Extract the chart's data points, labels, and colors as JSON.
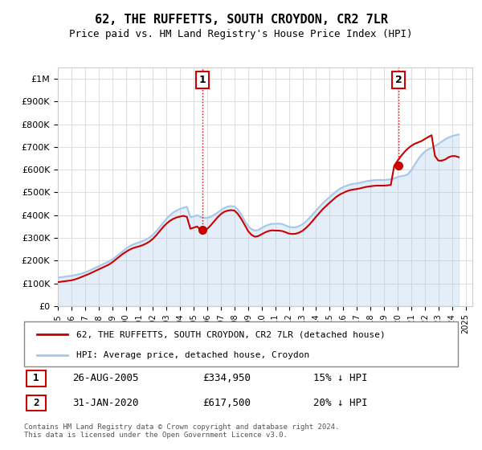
{
  "title": "62, THE RUFFETTS, SOUTH CROYDON, CR2 7LR",
  "subtitle": "Price paid vs. HM Land Registry's House Price Index (HPI)",
  "ylabel_ticks": [
    "£0",
    "£100K",
    "£200K",
    "£300K",
    "£400K",
    "£500K",
    "£600K",
    "£700K",
    "£800K",
    "£900K",
    "£1M"
  ],
  "ytick_values": [
    0,
    100000,
    200000,
    300000,
    400000,
    500000,
    600000,
    700000,
    800000,
    900000,
    1000000
  ],
  "ylim": [
    0,
    1050000
  ],
  "xlim_start": 1995.0,
  "xlim_end": 2025.5,
  "xtick_years": [
    1995,
    1996,
    1997,
    1998,
    1999,
    2000,
    2001,
    2002,
    2003,
    2004,
    2005,
    2006,
    2007,
    2008,
    2009,
    2010,
    2011,
    2012,
    2013,
    2014,
    2015,
    2016,
    2017,
    2018,
    2019,
    2020,
    2021,
    2022,
    2023,
    2024,
    2025
  ],
  "hpi_color": "#a8c8e8",
  "price_color": "#cc0000",
  "marker_color": "#cc0000",
  "annotation_box_color": "#cc0000",
  "grid_color": "#dddddd",
  "bg_color": "#ffffff",
  "legend_label_price": "62, THE RUFFETTS, SOUTH CROYDON, CR2 7LR (detached house)",
  "legend_label_hpi": "HPI: Average price, detached house, Croydon",
  "transaction1_date": "26-AUG-2005",
  "transaction1_price": "£334,950",
  "transaction1_note": "15% ↓ HPI",
  "transaction1_x": 2005.65,
  "transaction1_y": 334950,
  "transaction2_date": "31-JAN-2020",
  "transaction2_price": "£617,500",
  "transaction2_note": "20% ↓ HPI",
  "transaction2_x": 2020.08,
  "transaction2_y": 617500,
  "footer": "Contains HM Land Registry data © Crown copyright and database right 2024.\nThis data is licensed under the Open Government Licence v3.0.",
  "hpi_x": [
    1995.0,
    1995.25,
    1995.5,
    1995.75,
    1996.0,
    1996.25,
    1996.5,
    1996.75,
    1997.0,
    1997.25,
    1997.5,
    1997.75,
    1998.0,
    1998.25,
    1998.5,
    1998.75,
    1999.0,
    1999.25,
    1999.5,
    1999.75,
    2000.0,
    2000.25,
    2000.5,
    2000.75,
    2001.0,
    2001.25,
    2001.5,
    2001.75,
    2002.0,
    2002.25,
    2002.5,
    2002.75,
    2003.0,
    2003.25,
    2003.5,
    2003.75,
    2004.0,
    2004.25,
    2004.5,
    2004.75,
    2005.0,
    2005.25,
    2005.5,
    2005.75,
    2006.0,
    2006.25,
    2006.5,
    2006.75,
    2007.0,
    2007.25,
    2007.5,
    2007.75,
    2008.0,
    2008.25,
    2008.5,
    2008.75,
    2009.0,
    2009.25,
    2009.5,
    2009.75,
    2010.0,
    2010.25,
    2010.5,
    2010.75,
    2011.0,
    2011.25,
    2011.5,
    2011.75,
    2012.0,
    2012.25,
    2012.5,
    2012.75,
    2013.0,
    2013.25,
    2013.5,
    2013.75,
    2014.0,
    2014.25,
    2014.5,
    2014.75,
    2015.0,
    2015.25,
    2015.5,
    2015.75,
    2016.0,
    2016.25,
    2016.5,
    2016.75,
    2017.0,
    2017.25,
    2017.5,
    2017.75,
    2018.0,
    2018.25,
    2018.5,
    2018.75,
    2019.0,
    2019.25,
    2019.5,
    2019.75,
    2020.0,
    2020.25,
    2020.5,
    2020.75,
    2021.0,
    2021.25,
    2021.5,
    2021.75,
    2022.0,
    2022.25,
    2022.5,
    2022.75,
    2023.0,
    2023.25,
    2023.5,
    2023.75,
    2024.0,
    2024.25,
    2024.5
  ],
  "hpi_y": [
    125000,
    127000,
    129000,
    131000,
    133000,
    136000,
    139000,
    143000,
    148000,
    154000,
    161000,
    168000,
    175000,
    182000,
    189000,
    196000,
    205000,
    216000,
    228000,
    240000,
    252000,
    262000,
    270000,
    276000,
    281000,
    286000,
    293000,
    302000,
    314000,
    330000,
    348000,
    367000,
    385000,
    400000,
    412000,
    421000,
    428000,
    433000,
    437000,
    391000,
    395000,
    400000,
    392000,
    389000,
    388000,
    393000,
    402000,
    411000,
    422000,
    432000,
    438000,
    440000,
    438000,
    424000,
    402000,
    375000,
    352000,
    338000,
    332000,
    335000,
    344000,
    352000,
    358000,
    362000,
    362000,
    363000,
    361000,
    355000,
    349000,
    346000,
    347000,
    352000,
    360000,
    372000,
    387000,
    403000,
    420000,
    437000,
    453000,
    467000,
    480000,
    493000,
    506000,
    516000,
    524000,
    530000,
    535000,
    538000,
    540000,
    543000,
    547000,
    550000,
    552000,
    554000,
    555000,
    555000,
    555000,
    556000,
    558000,
    562000,
    568000,
    572000,
    574000,
    580000,
    598000,
    622000,
    645000,
    665000,
    680000,
    690000,
    697000,
    704000,
    714000,
    724000,
    734000,
    742000,
    748000,
    752000,
    755000
  ],
  "price_x": [
    1995.0,
    1995.25,
    1995.5,
    1995.75,
    1996.0,
    1996.25,
    1996.5,
    1996.75,
    1997.0,
    1997.25,
    1997.5,
    1997.75,
    1998.0,
    1998.25,
    1998.5,
    1998.75,
    1999.0,
    1999.25,
    1999.5,
    1999.75,
    2000.0,
    2000.25,
    2000.5,
    2000.75,
    2001.0,
    2001.25,
    2001.5,
    2001.75,
    2002.0,
    2002.25,
    2002.5,
    2002.75,
    2003.0,
    2003.25,
    2003.5,
    2003.75,
    2004.0,
    2004.25,
    2004.5,
    2004.75,
    2005.0,
    2005.25,
    2005.5,
    2005.75,
    2006.0,
    2006.25,
    2006.5,
    2006.75,
    2007.0,
    2007.25,
    2007.5,
    2007.75,
    2008.0,
    2008.25,
    2008.5,
    2008.75,
    2009.0,
    2009.25,
    2009.5,
    2009.75,
    2010.0,
    2010.25,
    2010.5,
    2010.75,
    2011.0,
    2011.25,
    2011.5,
    2011.75,
    2012.0,
    2012.25,
    2012.5,
    2012.75,
    2013.0,
    2013.25,
    2013.5,
    2013.75,
    2014.0,
    2014.25,
    2014.5,
    2014.75,
    2015.0,
    2015.25,
    2015.5,
    2015.75,
    2016.0,
    2016.25,
    2016.5,
    2016.75,
    2017.0,
    2017.25,
    2017.5,
    2017.75,
    2018.0,
    2018.25,
    2018.5,
    2018.75,
    2019.0,
    2019.25,
    2019.5,
    2019.75,
    2020.0,
    2020.25,
    2020.5,
    2020.75,
    2021.0,
    2021.25,
    2021.5,
    2021.75,
    2022.0,
    2022.25,
    2022.5,
    2022.75,
    2023.0,
    2023.25,
    2023.5,
    2023.75,
    2024.0,
    2024.25,
    2024.5
  ],
  "price_y": [
    105000,
    107000,
    109000,
    111000,
    113000,
    117000,
    122000,
    128000,
    134000,
    140000,
    147000,
    154000,
    161000,
    168000,
    175000,
    182000,
    192000,
    204000,
    216000,
    228000,
    238000,
    247000,
    254000,
    259000,
    263000,
    268000,
    275000,
    284000,
    296000,
    312000,
    330000,
    348000,
    363000,
    375000,
    384000,
    390000,
    394000,
    397000,
    392000,
    340000,
    345000,
    350000,
    334950,
    335000,
    340000,
    355000,
    373000,
    390000,
    405000,
    415000,
    420000,
    422000,
    420000,
    405000,
    383000,
    357000,
    330000,
    313000,
    305000,
    308000,
    316000,
    324000,
    330000,
    333000,
    332000,
    332000,
    330000,
    325000,
    319000,
    317000,
    318000,
    323000,
    331000,
    343000,
    358000,
    375000,
    393000,
    410000,
    427000,
    441000,
    455000,
    468000,
    481000,
    491000,
    498000,
    505000,
    510000,
    513000,
    515000,
    518000,
    522000,
    525000,
    527000,
    529000,
    530000,
    530000,
    530000,
    531000,
    533000,
    617500,
    640000,
    660000,
    678000,
    693000,
    705000,
    714000,
    720000,
    726000,
    735000,
    744000,
    752000,
    660000,
    640000,
    640000,
    645000,
    655000,
    660000,
    660000,
    655000
  ]
}
